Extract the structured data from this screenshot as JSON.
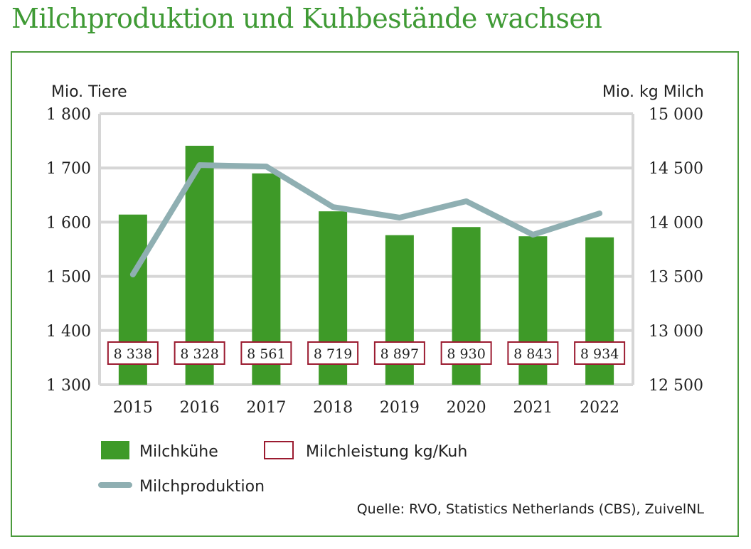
{
  "title": "Milchproduktion und Kuhbestände wachsen",
  "source": "Quelle: RVO, Statistics Netherlands (CBS), ZuivelNL",
  "chart_data": {
    "type": "bar+line",
    "title": "Milchproduktion und Kuhbestände wachsen",
    "categories": [
      "2015",
      "2016",
      "2017",
      "2018",
      "2019",
      "2020",
      "2021",
      "2022"
    ],
    "y_left": {
      "label": "Mio. Tiere",
      "range": [
        1300,
        1800
      ],
      "ticks": [
        "1 300",
        "1 400",
        "1 500",
        "1 600",
        "1 700",
        "1 800"
      ]
    },
    "y_right": {
      "label": "Mio. kg Milch",
      "range": [
        12500,
        15000
      ],
      "ticks": [
        "12 500",
        "13 000",
        "13 500",
        "14 000",
        "14 500",
        "15 000"
      ]
    },
    "grid": true,
    "legend_placement": "bottom",
    "series": [
      {
        "name": "Milchkühe",
        "type": "bar",
        "axis": "left",
        "color": "#3e9a28",
        "values": [
          1614,
          1741,
          1690,
          1620,
          1576,
          1591,
          1574,
          1572
        ]
      },
      {
        "name": "Milchleistung kg/Kuh",
        "type": "label-box",
        "color": "#9b1b30",
        "labels": [
          "8 338",
          "8 328",
          "8 561",
          "8 719",
          "8 897",
          "8 930",
          "8 843",
          "8 934"
        ]
      },
      {
        "name": "Milchproduktion",
        "type": "line",
        "axis": "right",
        "color": "#8fafb2",
        "values": [
          13517,
          14527,
          14514,
          14140,
          14042,
          14193,
          13884,
          14081
        ]
      }
    ]
  }
}
